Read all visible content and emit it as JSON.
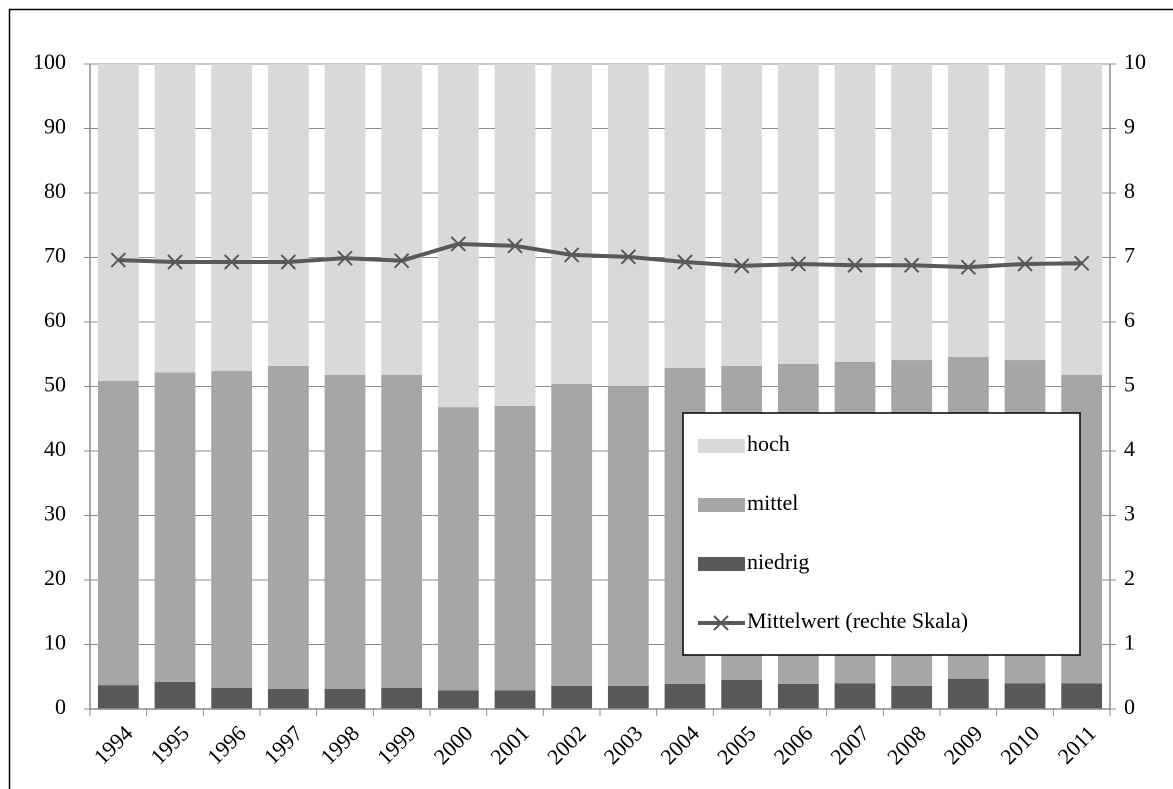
{
  "chart_data": {
    "type": "bar",
    "stacked": true,
    "categories": [
      "1994",
      "1995",
      "1996",
      "1997",
      "1998",
      "1999",
      "2000",
      "2001",
      "2002",
      "2003",
      "2004",
      "2005",
      "2006",
      "2007",
      "2008",
      "2009",
      "2010",
      "2011"
    ],
    "series": [
      {
        "name": "niedrig",
        "color": "#595959",
        "values": [
          3.7,
          4.2,
          3.3,
          3.1,
          3.1,
          3.3,
          2.9,
          2.9,
          3.6,
          3.6,
          3.9,
          4.5,
          3.9,
          4.0,
          3.6,
          4.7,
          4.0,
          4.0
        ]
      },
      {
        "name": "mittel",
        "color": "#a6a6a6",
        "values": [
          47.2,
          48.0,
          49.1,
          50.1,
          48.7,
          48.5,
          43.9,
          44.1,
          46.8,
          46.5,
          49.0,
          48.7,
          49.6,
          49.8,
          50.5,
          49.9,
          50.1,
          47.8
        ]
      },
      {
        "name": "hoch",
        "color": "#d9d9d9",
        "values": [
          49.1,
          47.8,
          47.6,
          46.8,
          48.2,
          48.2,
          53.2,
          53.0,
          49.6,
          49.9,
          47.1,
          46.8,
          46.5,
          46.2,
          45.9,
          45.4,
          45.9,
          48.2
        ]
      },
      {
        "name": "Mittelwert (rechte Skala)",
        "color": "#595959",
        "type": "line",
        "marker": "x",
        "axis": "y2",
        "values": [
          6.96,
          6.93,
          6.93,
          6.93,
          6.99,
          6.95,
          7.21,
          7.18,
          7.04,
          7.01,
          6.93,
          6.87,
          6.9,
          6.88,
          6.88,
          6.85,
          6.9,
          6.91
        ]
      }
    ],
    "ylim": [
      0,
      100
    ],
    "yticks": [
      0,
      10,
      20,
      30,
      40,
      50,
      60,
      70,
      80,
      90,
      100
    ],
    "y2lim": [
      0,
      10
    ],
    "y2ticks": [
      0,
      1,
      2,
      3,
      4,
      5,
      6,
      7,
      8,
      9,
      10
    ],
    "grid": true,
    "legend": "right"
  }
}
